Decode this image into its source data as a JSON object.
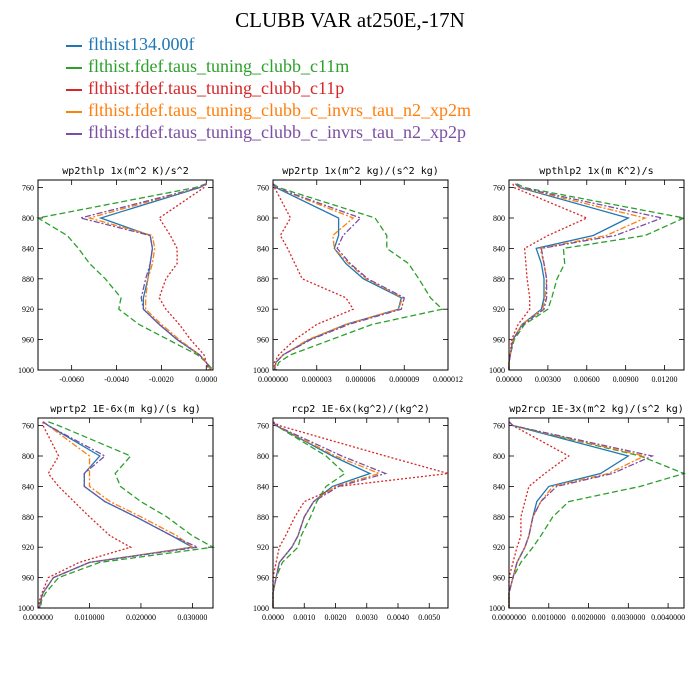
{
  "title": "CLUBB VAR at250E,-17N",
  "legend": [
    {
      "label": "flthist134.000f",
      "color": "#1f77b4",
      "dash": "solid"
    },
    {
      "label": "flthist.fdef.taus_tuning_clubb_c11m",
      "color": "#2ca02c",
      "dash": "dashed"
    },
    {
      "label": "flthist.fdef.taus_tuning_clubb_c11p",
      "color": "#d62728",
      "dash": "dotted"
    },
    {
      "label": "flthist.fdef.taus_tuning_clubb_c_invrs_tau_n2_xp2m",
      "color": "#ff7f0e",
      "dash": "dashdot"
    },
    {
      "label": "flthist.fdef.taus_tuning_clubb_c_invrs_tau_n2_xp2p",
      "color": "#7b4ea3",
      "dash": "dashdot"
    }
  ],
  "chart_data": [
    {
      "type": "line",
      "title": "wp2thlp  1x(m^2 K)/s^2",
      "xlim": [
        -0.0075,
        0.0003
      ],
      "ylim": [
        1000,
        750
      ],
      "xticks": [
        "-0.0060",
        "-0.0040",
        "-0.0020",
        "0.0000"
      ],
      "xtick_values": [
        -0.006,
        -0.004,
        -0.002,
        0.0
      ],
      "yticks": [
        760,
        800,
        840,
        880,
        920,
        960,
        1000
      ],
      "y": [
        755,
        760,
        800,
        823,
        840,
        860,
        880,
        905,
        920,
        940,
        960,
        980,
        990,
        1000
      ],
      "series": [
        {
          "name": "flthist134.000f",
          "values": [
            0.0,
            -0.0003,
            -0.0047,
            -0.0025,
            -0.0024,
            -0.0025,
            -0.0026,
            -0.0028,
            -0.0028,
            -0.0021,
            -0.0013,
            -0.0003,
            0.0,
            0.0002
          ]
        },
        {
          "name": "flthist.fdef.taus_tuning_clubb_c11m",
          "values": [
            0.0,
            -0.0005,
            -0.0075,
            -0.0062,
            -0.0057,
            -0.0052,
            -0.0045,
            -0.0038,
            -0.0039,
            -0.003,
            -0.0017,
            -0.0004,
            0.0,
            0.0003
          ]
        },
        {
          "name": "flthist.fdef.taus_tuning_clubb_c11p",
          "values": [
            0.0,
            -0.0001,
            -0.0021,
            -0.0016,
            -0.0013,
            -0.0013,
            -0.0018,
            -0.0021,
            -0.0018,
            -0.0012,
            -0.0007,
            -0.0001,
            0.0,
            0.0001
          ]
        },
        {
          "name": "flthist.fdef.taus_tuning_clubb_c_invrs_tau_n2_xp2m",
          "values": [
            0.0,
            -0.0003,
            -0.0052,
            -0.0024,
            -0.0023,
            -0.0024,
            -0.0026,
            -0.0027,
            -0.0027,
            -0.002,
            -0.0012,
            -0.0003,
            0.0,
            0.0002
          ]
        },
        {
          "name": "flthist.fdef.taus_tuning_clubb_c_invrs_tau_n2_xp2p",
          "values": [
            0.0,
            -0.0003,
            -0.0056,
            -0.0025,
            -0.0024,
            -0.0025,
            -0.0027,
            -0.0029,
            -0.0028,
            -0.0021,
            -0.0013,
            -0.0003,
            0.0,
            0.0002
          ]
        }
      ]
    },
    {
      "type": "line",
      "title": "wp2rtp  1x(m^2 kg)/(s^2 kg)",
      "xlim": [
        0.0,
        1.2e-05
      ],
      "ylim": [
        1000,
        750
      ],
      "xticks": [
        "0.000000",
        "0.000003",
        "0.000006",
        "0.000009",
        "0.000012"
      ],
      "xtick_values": [
        0.0,
        3e-06,
        6e-06,
        9e-06,
        1.2e-05
      ],
      "yticks": [
        760,
        800,
        840,
        880,
        920,
        960,
        1000
      ],
      "y": [
        755,
        760,
        800,
        823,
        840,
        860,
        880,
        905,
        920,
        940,
        960,
        980,
        990,
        1000
      ],
      "series": [
        {
          "name": "flthist134.000f",
          "values": [
            0.0,
            2e-07,
            4.5e-06,
            4.5e-06,
            4.2e-06,
            5e-06,
            6.2e-06,
            8.8e-06,
            8.6e-06,
            5e-06,
            2.5e-06,
            7e-07,
            2e-07,
            1e-07
          ]
        },
        {
          "name": "flthist.fdef.taus_tuning_clubb_c11m",
          "values": [
            0.0,
            4e-07,
            7e-06,
            7.8e-06,
            7.8e-06,
            9.3e-06,
            1e-05,
            1.08e-05,
            1.16e-05,
            6.8e-06,
            4e-06,
            1.2e-06,
            4e-07,
            2e-07
          ]
        },
        {
          "name": "flthist.fdef.taus_tuning_clubb_c11p",
          "values": [
            0.0,
            1e-07,
            1.2e-06,
            5e-07,
            1e-06,
            1.5e-06,
            2e-06,
            5e-06,
            5.5e-06,
            3e-06,
            1.5e-06,
            4e-07,
            1e-07,
            1e-07
          ]
        },
        {
          "name": "flthist.fdef.taus_tuning_clubb_c_invrs_tau_n2_xp2m",
          "values": [
            0.0,
            2e-07,
            5.5e-06,
            4.1e-06,
            4.2e-06,
            5.2e-06,
            6.4e-06,
            8.9e-06,
            8.6e-06,
            5e-06,
            2.4e-06,
            7e-07,
            2e-07,
            1e-07
          ]
        },
        {
          "name": "flthist.fdef.taus_tuning_clubb_c_invrs_tau_n2_xp2p",
          "values": [
            0.0,
            2e-07,
            6e-06,
            4.8e-06,
            4.4e-06,
            5.3e-06,
            6.5e-06,
            9e-06,
            8.8e-06,
            5.2e-06,
            2.6e-06,
            7e-07,
            2e-07,
            1e-07
          ]
        }
      ]
    },
    {
      "type": "line",
      "title": "wpthlp2  1x(m K^2)/s",
      "xlim": [
        0.0,
        0.0135
      ],
      "ylim": [
        1000,
        750
      ],
      "xticks": [
        "0.00000",
        "0.00300",
        "0.00600",
        "0.00900",
        "0.01200"
      ],
      "xtick_values": [
        0.0,
        0.003,
        0.006,
        0.009,
        0.012
      ],
      "yticks": [
        760,
        800,
        840,
        880,
        920,
        960,
        1000
      ],
      "y": [
        755,
        760,
        800,
        823,
        840,
        860,
        880,
        905,
        920,
        940,
        960,
        980,
        990,
        1000
      ],
      "series": [
        {
          "name": "flthist134.000f",
          "values": [
            0.0005,
            0.0008,
            0.0092,
            0.0065,
            0.0021,
            0.0025,
            0.0027,
            0.0027,
            0.0025,
            0.001,
            0.0003,
            0.0001,
            0.0,
            0.0
          ]
        },
        {
          "name": "flthist.fdef.taus_tuning_clubb_c11m",
          "values": [
            0.0006,
            0.0012,
            0.0135,
            0.0105,
            0.0042,
            0.0043,
            0.0037,
            0.0033,
            0.003,
            0.0012,
            0.0004,
            0.0001,
            0.0,
            0.0
          ]
        },
        {
          "name": "flthist.fdef.taus_tuning_clubb_c11p",
          "values": [
            0.0003,
            0.0004,
            0.006,
            0.003,
            0.0012,
            0.0013,
            0.0014,
            0.0016,
            0.0016,
            0.0007,
            0.0002,
            0.0001,
            0.0,
            0.0
          ]
        },
        {
          "name": "flthist.fdef.taus_tuning_clubb_c_invrs_tau_n2_xp2m",
          "values": [
            0.0005,
            0.0008,
            0.0105,
            0.0075,
            0.0024,
            0.0027,
            0.0029,
            0.0028,
            0.0026,
            0.001,
            0.0003,
            0.0001,
            0.0,
            0.0
          ]
        },
        {
          "name": "flthist.fdef.taus_tuning_clubb_c_invrs_tau_n2_xp2p",
          "values": [
            0.0005,
            0.0009,
            0.0118,
            0.0082,
            0.0025,
            0.0027,
            0.0029,
            0.0029,
            0.0027,
            0.0011,
            0.0003,
            0.0001,
            0.0,
            0.0
          ]
        }
      ]
    },
    {
      "type": "line",
      "title": "wprtp2  1E-6x(m kg)/(s kg)",
      "xlim": [
        0.0,
        0.034
      ],
      "ylim": [
        1000,
        750
      ],
      "xticks": [
        "0.000000",
        "0.010000",
        "0.020000",
        "0.030000"
      ],
      "xtick_values": [
        0.0,
        0.01,
        0.02,
        0.03
      ],
      "yticks": [
        760,
        800,
        840,
        880,
        920,
        960,
        1000
      ],
      "y": [
        755,
        760,
        800,
        823,
        840,
        860,
        880,
        905,
        920,
        940,
        960,
        980,
        990,
        1000
      ],
      "series": [
        {
          "name": "flthist134.000f",
          "values": [
            0.001,
            0.002,
            0.012,
            0.009,
            0.009,
            0.013,
            0.019,
            0.026,
            0.03,
            0.01,
            0.003,
            0.001,
            0.0005,
            0.0003
          ]
        },
        {
          "name": "flthist.fdef.taus_tuning_clubb_c11m",
          "values": [
            0.002,
            0.004,
            0.018,
            0.015,
            0.016,
            0.02,
            0.025,
            0.03,
            0.034,
            0.012,
            0.004,
            0.0015,
            0.0007,
            0.0005
          ]
        },
        {
          "name": "flthist.fdef.taus_tuning_clubb_c11p",
          "values": [
            0.001,
            0.001,
            0.004,
            0.002,
            0.004,
            0.007,
            0.01,
            0.014,
            0.018,
            0.008,
            0.002,
            0.0008,
            0.0003,
            0.0002
          ]
        },
        {
          "name": "flthist.fdef.taus_tuning_clubb_c_invrs_tau_n2_xp2m",
          "values": [
            0.001,
            0.002,
            0.01,
            0.01,
            0.01,
            0.014,
            0.02,
            0.027,
            0.03,
            0.01,
            0.003,
            0.001,
            0.0005,
            0.0003
          ]
        },
        {
          "name": "flthist.fdef.taus_tuning_clubb_c_invrs_tau_n2_xp2p",
          "values": [
            0.001,
            0.002,
            0.013,
            0.009,
            0.009,
            0.013,
            0.019,
            0.026,
            0.031,
            0.01,
            0.003,
            0.001,
            0.0005,
            0.0003
          ]
        }
      ]
    },
    {
      "type": "line",
      "title": "rcp2  1E-6x(kg^2)/(kg^2)",
      "xlim": [
        0.0,
        0.0056
      ],
      "ylim": [
        1000,
        750
      ],
      "xticks": [
        "0.0000",
        "0.0010",
        "0.0020",
        "0.0030",
        "0.0040",
        "0.0050"
      ],
      "xtick_values": [
        0.0,
        0.001,
        0.002,
        0.003,
        0.004,
        0.005
      ],
      "yticks": [
        760,
        800,
        840,
        880,
        920,
        960,
        1000
      ],
      "y": [
        755,
        760,
        800,
        823,
        840,
        860,
        880,
        905,
        920,
        940,
        960,
        980,
        990,
        1000
      ],
      "series": [
        {
          "name": "flthist134.000f",
          "values": [
            0.0,
            0.0001,
            0.0019,
            0.0031,
            0.0019,
            0.0013,
            0.001,
            0.0008,
            0.0006,
            0.0002,
            0.0001,
            0.0,
            0.0,
            0.0
          ]
        },
        {
          "name": "flthist.fdef.taus_tuning_clubb_c11m",
          "values": [
            0.0,
            0.0001,
            0.0017,
            0.0023,
            0.0017,
            0.0014,
            0.0012,
            0.0009,
            0.0008,
            0.0003,
            0.0001,
            0.0,
            0.0,
            0.0
          ]
        },
        {
          "name": "flthist.fdef.taus_tuning_clubb_c11p",
          "values": [
            0.0,
            0.0002,
            0.0036,
            0.0056,
            0.0021,
            0.001,
            0.0007,
            0.0004,
            0.0002,
            0.0001,
            0.0,
            0.0,
            0.0,
            0.0
          ]
        },
        {
          "name": "flthist.fdef.taus_tuning_clubb_c_invrs_tau_n2_xp2m",
          "values": [
            0.0,
            0.0001,
            0.002,
            0.0034,
            0.002,
            0.0013,
            0.001,
            0.0008,
            0.0006,
            0.0002,
            0.0001,
            0.0,
            0.0,
            0.0
          ]
        },
        {
          "name": "flthist.fdef.taus_tuning_clubb_c_invrs_tau_n2_xp2p",
          "values": [
            0.0,
            0.0001,
            0.0022,
            0.0036,
            0.0021,
            0.0013,
            0.001,
            0.0008,
            0.0006,
            0.0002,
            0.0001,
            0.0,
            0.0,
            0.0
          ]
        }
      ]
    },
    {
      "type": "line",
      "title": "wp2rcp  1E-3x(m^2 kg)/(s^2 kg)",
      "xlim": [
        0.0,
        0.0044
      ],
      "ylim": [
        1000,
        750
      ],
      "xticks": [
        "0.0000000",
        "0.0010000",
        "0.0020000",
        "0.0030000",
        "0.0040000"
      ],
      "xtick_values": [
        0.0,
        0.001,
        0.002,
        0.003,
        0.004
      ],
      "yticks": [
        760,
        800,
        840,
        880,
        920,
        960,
        1000
      ],
      "y": [
        755,
        760,
        800,
        823,
        840,
        860,
        880,
        905,
        920,
        940,
        960,
        980,
        990,
        1000
      ],
      "series": [
        {
          "name": "flthist134.000f",
          "values": [
            0.0,
            0.0001,
            0.003,
            0.0023,
            0.001,
            0.0007,
            0.0006,
            0.0005,
            0.0004,
            0.0002,
            0.0001,
            0.0,
            0.0,
            0.0
          ]
        },
        {
          "name": "flthist.fdef.taus_tuning_clubb_c11m",
          "values": [
            0.0,
            0.0001,
            0.0033,
            0.0044,
            0.0033,
            0.0015,
            0.0011,
            0.0008,
            0.0006,
            0.0003,
            0.0001,
            0.0,
            0.0,
            0.0
          ]
        },
        {
          "name": "flthist.fdef.taus_tuning_clubb_c11p",
          "values": [
            0.0,
            0.0001,
            0.0015,
            0.0009,
            0.0005,
            0.0004,
            0.0003,
            0.0003,
            0.0002,
            0.0001,
            0.0,
            0.0,
            0.0,
            0.0
          ]
        },
        {
          "name": "flthist.fdef.taus_tuning_clubb_c_invrs_tau_n2_xp2m",
          "values": [
            0.0,
            0.0001,
            0.0034,
            0.0025,
            0.0011,
            0.0008,
            0.0006,
            0.0005,
            0.0004,
            0.0002,
            0.0001,
            0.0,
            0.0,
            0.0
          ]
        },
        {
          "name": "flthist.fdef.taus_tuning_clubb_c_invrs_tau_n2_xp2p",
          "values": [
            0.0,
            0.0001,
            0.0036,
            0.0026,
            0.0012,
            0.0008,
            0.0006,
            0.0005,
            0.0004,
            0.0002,
            0.0001,
            0.0,
            0.0,
            0.0
          ]
        }
      ]
    }
  ]
}
